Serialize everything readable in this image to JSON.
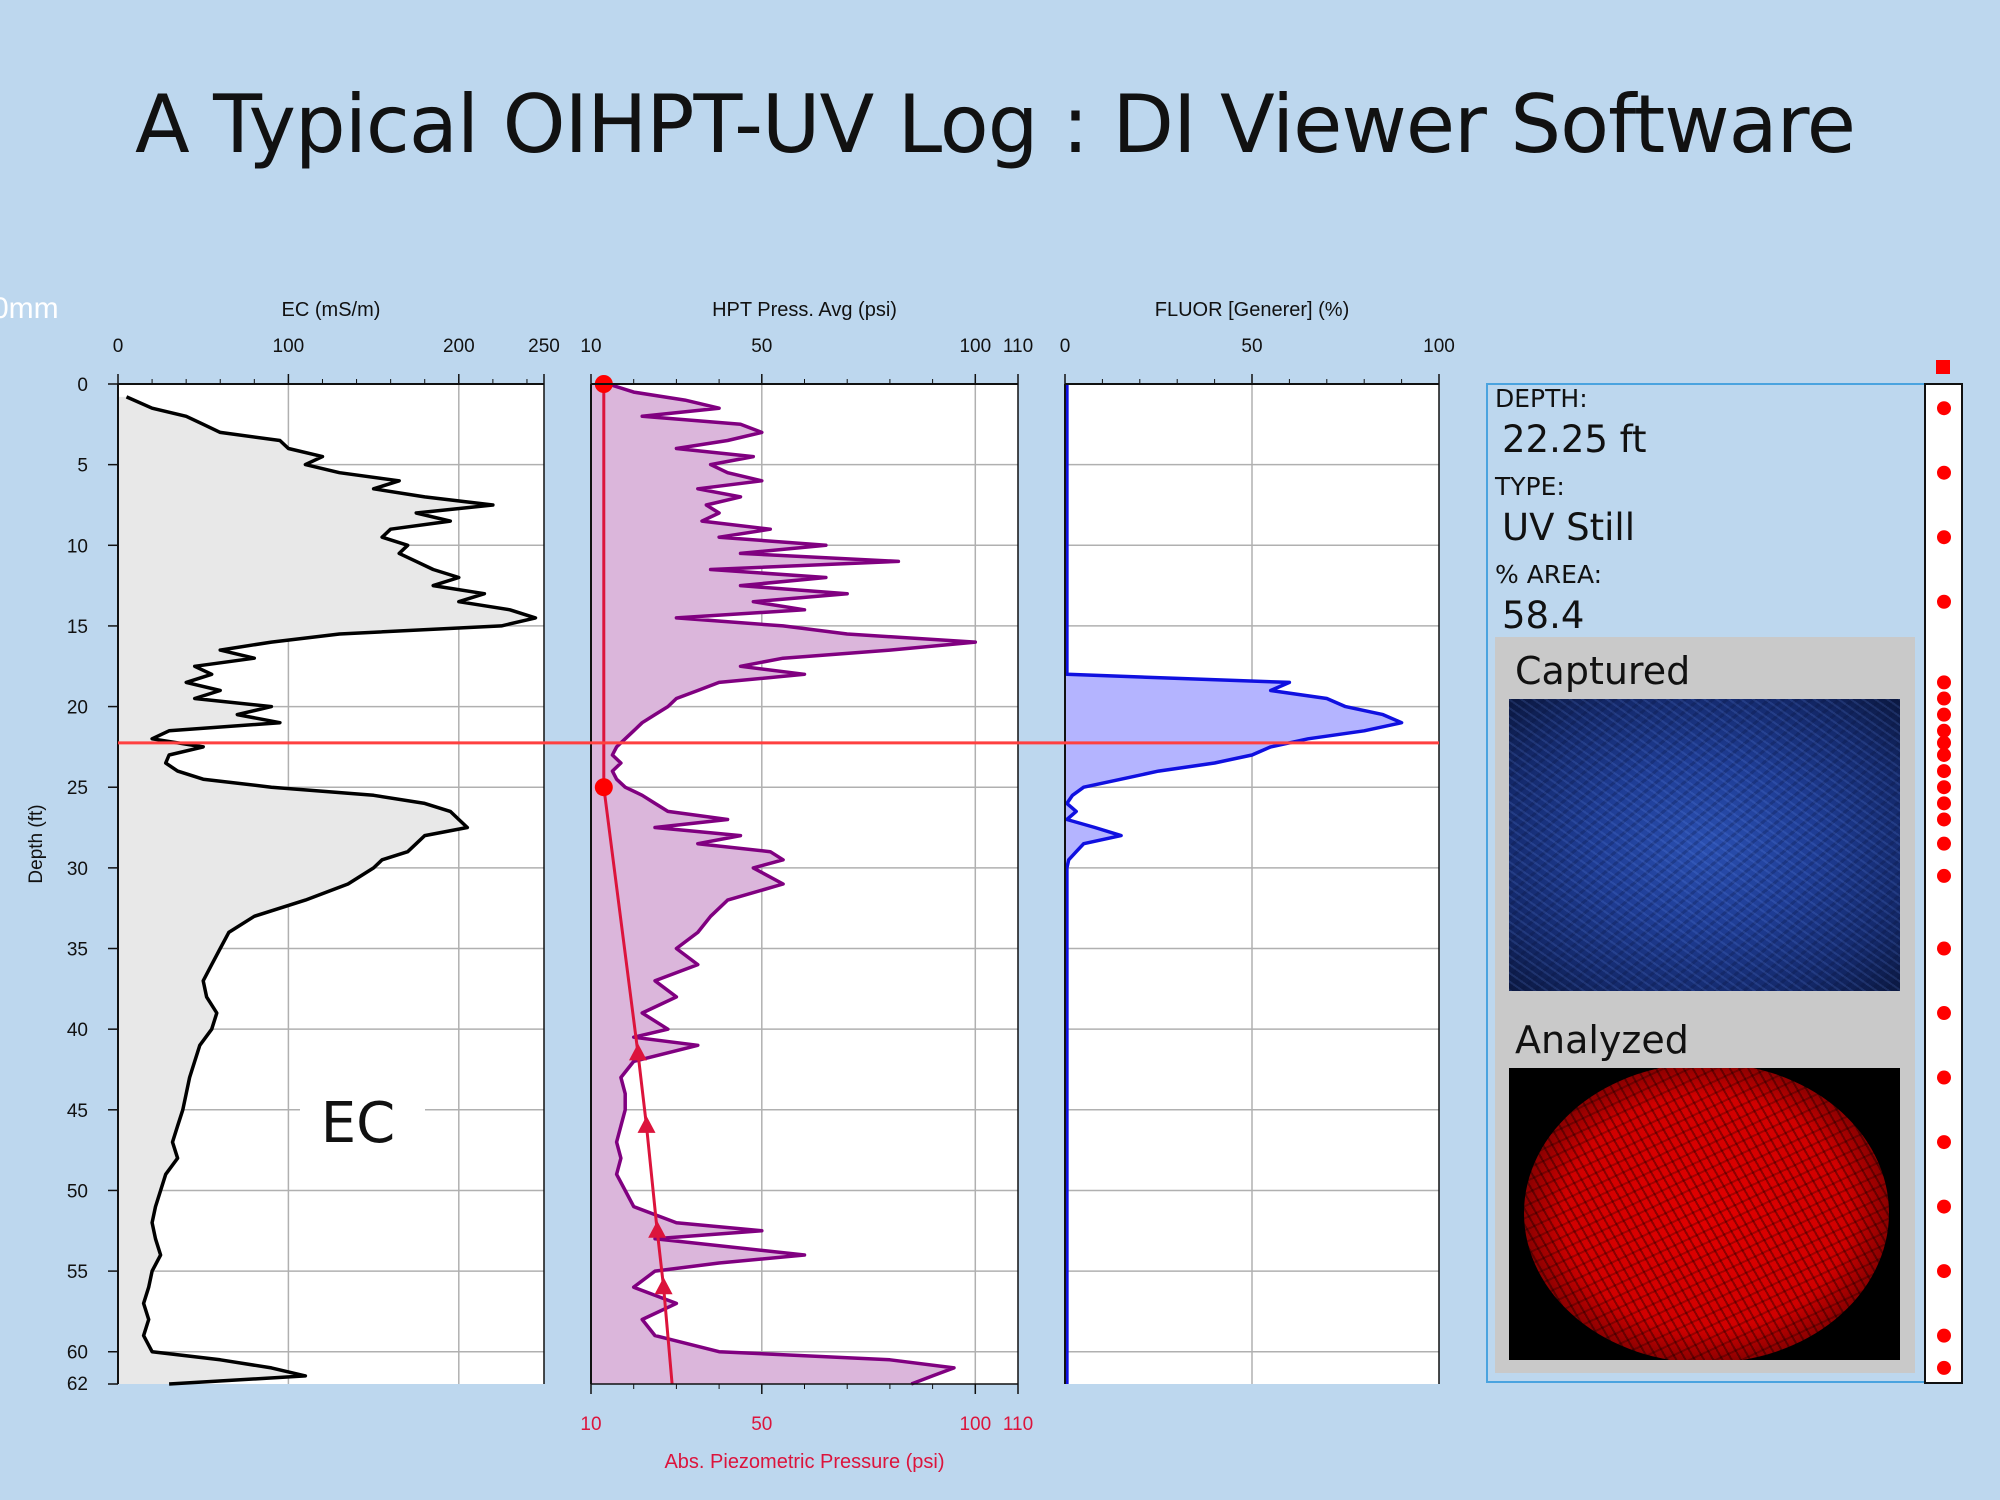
{
  "slide": {
    "title": "A Typical OIHPT-UV Log : DI Viewer Software",
    "cut_label": "0mm"
  },
  "info": {
    "depth_label": "DEPTH:",
    "depth_value": "22.25 ft",
    "type_label": "TYPE:",
    "type_value": "UV Still",
    "area_label": "% AREA:",
    "area_value": "58.4",
    "captured_label": "Captured",
    "analyzed_label": "Analyzed"
  },
  "colors": {
    "background": "#bdd7ee",
    "ec": "#000000",
    "ec_fill": "#e8e8e8",
    "hpt": "#800080",
    "hpt_fill": "#dbb6db",
    "fluor": "#1010e0",
    "fluor_fill": "#b4b4ff",
    "reference": "#dc143c",
    "marker": "#ff0000",
    "panel_border": "#4aa3df"
  },
  "chart_data": {
    "type": "line",
    "depth_axis": {
      "label": "Depth (ft)",
      "range": [
        0,
        62
      ],
      "ticks": [
        0,
        5,
        10,
        15,
        20,
        25,
        30,
        35,
        40,
        45,
        50,
        55,
        60,
        62
      ],
      "inverted": true
    },
    "current_depth": 22.25,
    "grid": true,
    "tracks": [
      {
        "name": "EC (mS/m)",
        "annotation": "EC",
        "xlim": [
          0,
          250
        ],
        "ticks": [
          0,
          100,
          200,
          250
        ],
        "series": [
          {
            "depth": [
              0.8,
              1.5,
              2.0,
              2.5,
              3.0,
              3.5,
              4.0,
              4.5,
              5.0,
              5.5,
              6.0,
              6.5,
              7.0,
              7.5,
              8.0,
              8.5,
              9.0,
              9.5,
              10.0,
              10.5,
              11.0,
              11.5,
              12.0,
              12.5,
              13.0,
              13.5,
              14.0,
              14.5,
              15.0,
              15.5,
              16.0,
              16.5,
              17.0,
              17.5,
              18.0,
              18.5,
              19.0,
              19.5,
              20.0,
              20.5,
              21.0,
              21.5,
              22.0,
              22.5,
              23.0,
              23.5,
              24.0,
              24.5,
              25.0,
              25.5,
              26.0,
              26.5,
              27.0,
              27.5,
              28.0,
              28.5,
              29.0,
              29.5,
              30.0,
              31.0,
              32.0,
              33.0,
              34.0,
              35.0,
              36.0,
              37.0,
              38.0,
              39.0,
              40.0,
              41.0,
              42.0,
              43.0,
              44.0,
              45.0,
              46.0,
              47.0,
              48.0,
              49.0,
              50.0,
              51.0,
              52.0,
              53.0,
              54.0,
              55.0,
              56.0,
              57.0,
              58.0,
              59.0,
              60.0,
              60.5,
              61.0,
              61.5,
              62.0
            ],
            "values": [
              5,
              20,
              40,
              50,
              60,
              95,
              100,
              120,
              110,
              130,
              165,
              150,
              180,
              220,
              175,
              195,
              160,
              155,
              170,
              165,
              175,
              185,
              200,
              185,
              215,
              200,
              230,
              245,
              225,
              130,
              90,
              60,
              80,
              45,
              55,
              40,
              60,
              45,
              90,
              70,
              95,
              30,
              20,
              50,
              30,
              28,
              35,
              50,
              90,
              150,
              180,
              195,
              200,
              205,
              180,
              175,
              170,
              155,
              150,
              135,
              110,
              80,
              65,
              60,
              55,
              50,
              52,
              58,
              55,
              48,
              45,
              42,
              40,
              38,
              35,
              32,
              35,
              28,
              25,
              22,
              20,
              22,
              25,
              20,
              18,
              15,
              18,
              15,
              20,
              60,
              90,
              110,
              30
            ]
          }
        ]
      },
      {
        "name": "HPT Press. Avg (psi)",
        "xlim": [
          10,
          110
        ],
        "ticks": [
          10,
          50,
          100,
          110
        ],
        "bottom_axis": {
          "label": "Abs. Piezometric Pressure (psi)",
          "ticks": [
            10,
            50,
            100,
            110
          ]
        },
        "series": [
          {
            "name": "HPT Press. Avg",
            "depth": [
              0.0,
              0.5,
              1.0,
              1.5,
              2.0,
              2.5,
              3.0,
              3.5,
              4.0,
              4.5,
              5.0,
              5.5,
              6.0,
              6.5,
              7.0,
              7.5,
              8.0,
              8.5,
              9.0,
              9.5,
              10.0,
              10.5,
              11.0,
              11.5,
              12.0,
              12.5,
              13.0,
              13.5,
              14.0,
              14.5,
              15.0,
              15.5,
              16.0,
              16.5,
              17.0,
              17.5,
              18.0,
              18.5,
              19.0,
              19.5,
              20.0,
              20.5,
              21.0,
              21.5,
              22.0,
              22.5,
              23.0,
              23.5,
              24.0,
              24.5,
              25.0,
              25.5,
              26.0,
              26.5,
              27.0,
              27.5,
              28.0,
              28.5,
              29.0,
              29.5,
              30.0,
              31.0,
              32.0,
              33.0,
              34.0,
              35.0,
              36.0,
              37.0,
              38.0,
              39.0,
              40.0,
              40.5,
              41.0,
              42.0,
              43.0,
              44.0,
              45.0,
              46.0,
              47.0,
              48.0,
              49.0,
              50.0,
              51.0,
              52.0,
              52.5,
              53.0,
              54.0,
              54.5,
              55.0,
              56.0,
              57.0,
              58.0,
              59.0,
              60.0,
              60.5,
              61.0,
              61.5,
              62.0
            ],
            "values": [
              14,
              20,
              32,
              40,
              22,
              45,
              50,
              42,
              30,
              48,
              38,
              42,
              50,
              35,
              45,
              37,
              40,
              36,
              52,
              40,
              65,
              45,
              82,
              38,
              65,
              45,
              70,
              48,
              60,
              30,
              55,
              70,
              100,
              80,
              55,
              45,
              60,
              40,
              35,
              30,
              28,
              25,
              22,
              20,
              18,
              16,
              15,
              17,
              15,
              16,
              18,
              22,
              25,
              28,
              42,
              25,
              45,
              35,
              52,
              55,
              48,
              55,
              42,
              38,
              35,
              30,
              35,
              25,
              30,
              22,
              28,
              20,
              35,
              20,
              17,
              18,
              18,
              17,
              16,
              17,
              16,
              18,
              20,
              30,
              50,
              25,
              60,
              40,
              25,
              20,
              30,
              22,
              25,
              40,
              80,
              95,
              90,
              85
            ]
          },
          {
            "name": "Abs. Piezometric Pressure",
            "depth": [
              0,
              25,
              41.5,
              46,
              52.5,
              56,
              62
            ],
            "values": [
              13,
              13,
              21,
              23,
              25.5,
              27,
              29
            ],
            "markers": [
              {
                "depth": 0,
                "value": 13,
                "shape": "circle"
              },
              {
                "depth": 25,
                "value": 13,
                "shape": "circle"
              },
              {
                "depth": 41.5,
                "value": 21,
                "shape": "triangle"
              },
              {
                "depth": 46,
                "value": 23,
                "shape": "triangle"
              },
              {
                "depth": 52.5,
                "value": 25.5,
                "shape": "triangle"
              },
              {
                "depth": 56,
                "value": 27,
                "shape": "triangle"
              }
            ]
          }
        ]
      },
      {
        "name": "FLUOR [Generer] (%)",
        "xlim": [
          0,
          100
        ],
        "ticks": [
          0,
          50,
          100
        ],
        "series": [
          {
            "depth": [
              0.0,
              18.0,
              18.5,
              19.0,
              19.5,
              20.0,
              20.5,
              21.0,
              21.5,
              22.0,
              22.5,
              23.0,
              23.5,
              24.0,
              24.5,
              25.0,
              25.5,
              26.0,
              26.5,
              27.0,
              27.5,
              28.0,
              28.5,
              29.0,
              29.5,
              30.0,
              62.0
            ],
            "values": [
              0.5,
              0.5,
              60,
              55,
              70,
              75,
              85,
              90,
              80,
              65,
              55,
              50,
              40,
              25,
              15,
              5,
              2,
              0.5,
              3,
              0.5,
              8,
              15,
              5,
              3,
              1,
              0.5,
              0.5
            ]
          }
        ]
      }
    ],
    "image_markers": {
      "depths": [
        1.5,
        5.5,
        9.5,
        13.5,
        18.5,
        19.5,
        20.5,
        21.5,
        22.25,
        23.0,
        24.0,
        25.0,
        26.0,
        27.0,
        28.5,
        30.5,
        35.0,
        39.0,
        43.0,
        47.0,
        51.0,
        55.0,
        59.0,
        61.0
      ]
    }
  }
}
